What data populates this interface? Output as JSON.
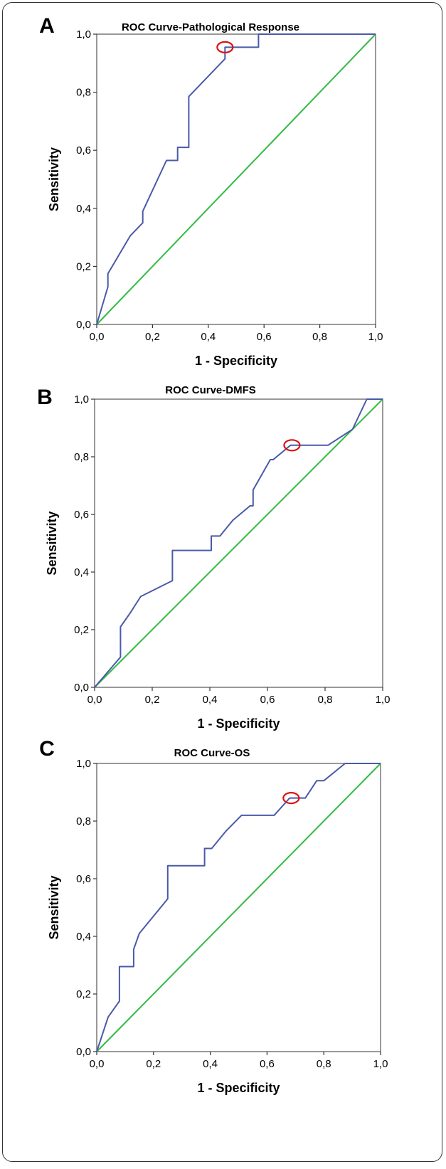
{
  "chart_data": [
    {
      "type": "line",
      "panel_label": "A",
      "title": "ROC Curve-Pathological Response",
      "xlabel": "1 - Specificity",
      "ylabel": "Sensitivity",
      "xlim": [
        0,
        1
      ],
      "ylim": [
        0,
        1
      ],
      "xticks": [
        "0,0",
        "0,2",
        "0,4",
        "0,6",
        "0,8",
        "1,0"
      ],
      "yticks": [
        "0,0",
        "0,2",
        "0,4",
        "0,6",
        "0,8",
        "1,0"
      ],
      "grid": false,
      "series": [
        {
          "color": "#4a5aa8",
          "x": [
            0,
            0.04,
            0.04,
            0.12,
            0.165,
            0.165,
            0.25,
            0.29,
            0.29,
            0.33,
            0.33,
            0.46,
            0.46,
            0.58,
            0.58,
            1.0
          ],
          "y": [
            0,
            0.13,
            0.175,
            0.305,
            0.35,
            0.39,
            0.565,
            0.565,
            0.61,
            0.61,
            0.785,
            0.915,
            0.955,
            0.955,
            1.0,
            1.0
          ]
        },
        {
          "color": "#33bb44",
          "x": [
            0,
            1
          ],
          "y": [
            0,
            1
          ]
        }
      ],
      "annotations": [
        {
          "shape": "ellipse",
          "color": "#dd1111",
          "x": 0.46,
          "y": 0.955
        }
      ]
    },
    {
      "type": "line",
      "panel_label": "B",
      "title": "ROC Curve-DMFS",
      "xlabel": "1 - Specificity",
      "ylabel": "Sensitivity",
      "xlim": [
        0,
        1
      ],
      "ylim": [
        0,
        1
      ],
      "xticks": [
        "0,0",
        "0,2",
        "0,4",
        "0,6",
        "0,8",
        "1,0"
      ],
      "yticks": [
        "0,0",
        "0,2",
        "0,4",
        "0,6",
        "0,8",
        "1,0"
      ],
      "grid": false,
      "series": [
        {
          "color": "#4a5aa8",
          "x": [
            0,
            0.09,
            0.09,
            0.125,
            0.16,
            0.27,
            0.27,
            0.405,
            0.405,
            0.435,
            0.48,
            0.54,
            0.55,
            0.55,
            0.61,
            0.62,
            0.68,
            0.7,
            0.81,
            0.895,
            0.945,
            1.0
          ],
          "y": [
            0,
            0.105,
            0.21,
            0.26,
            0.315,
            0.37,
            0.475,
            0.475,
            0.525,
            0.525,
            0.58,
            0.63,
            0.63,
            0.685,
            0.79,
            0.79,
            0.84,
            0.84,
            0.84,
            0.895,
            1.0,
            1.0
          ]
        },
        {
          "color": "#33bb44",
          "x": [
            0,
            1
          ],
          "y": [
            0,
            1
          ]
        }
      ],
      "annotations": [
        {
          "shape": "ellipse",
          "color": "#dd1111",
          "x": 0.685,
          "y": 0.84
        }
      ]
    },
    {
      "type": "line",
      "panel_label": "C",
      "title": "ROC Curve-OS",
      "xlabel": "1 - Specificity",
      "ylabel": "Sensitivity",
      "xlim": [
        0,
        1
      ],
      "ylim": [
        0,
        1
      ],
      "xticks": [
        "0,0",
        "0,2",
        "0,4",
        "0,6",
        "0,8",
        "1,0"
      ],
      "yticks": [
        "0,0",
        "0,2",
        "0,4",
        "0,6",
        "0,8",
        "1,0"
      ],
      "grid": false,
      "series": [
        {
          "color": "#4a5aa8",
          "x": [
            0,
            0.04,
            0.08,
            0.08,
            0.13,
            0.13,
            0.15,
            0.25,
            0.25,
            0.38,
            0.38,
            0.405,
            0.455,
            0.51,
            0.625,
            0.68,
            0.735,
            0.775,
            0.8,
            0.875,
            1.0
          ],
          "y": [
            0,
            0.12,
            0.175,
            0.295,
            0.295,
            0.355,
            0.41,
            0.53,
            0.645,
            0.645,
            0.705,
            0.705,
            0.765,
            0.82,
            0.82,
            0.88,
            0.88,
            0.94,
            0.94,
            1.0,
            1.0
          ]
        },
        {
          "color": "#33bb44",
          "x": [
            0,
            1
          ],
          "y": [
            0,
            1
          ]
        }
      ],
      "annotations": [
        {
          "shape": "ellipse",
          "color": "#dd1111",
          "x": 0.685,
          "y": 0.88
        }
      ]
    }
  ]
}
